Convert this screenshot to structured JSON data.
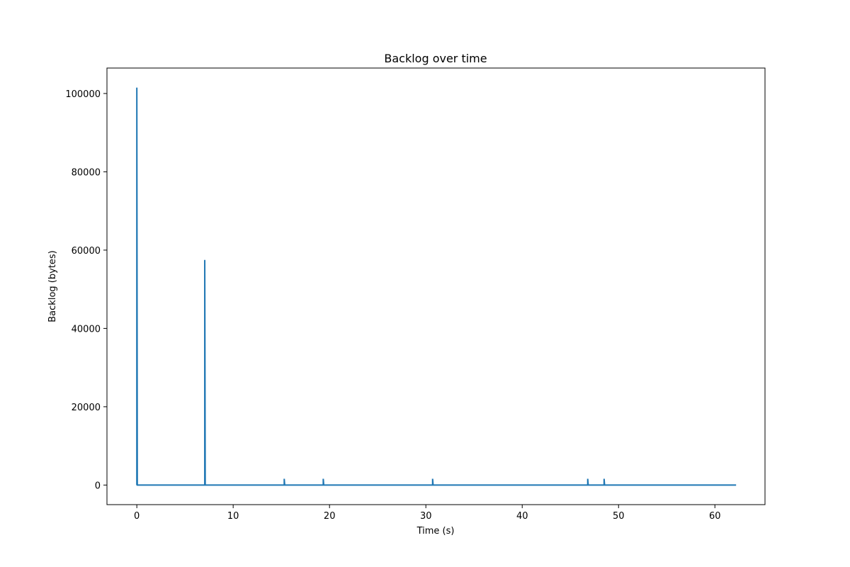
{
  "chart_data": {
    "type": "line",
    "title": "Backlog over time",
    "xlabel": "Time (s)",
    "ylabel": "Backlog (bytes)",
    "xlim": [
      -3.1,
      65.2
    ],
    "ylim": [
      -5000,
      106500
    ],
    "xticks": [
      0,
      10,
      20,
      30,
      40,
      50,
      60
    ],
    "yticks": [
      0,
      20000,
      40000,
      60000,
      80000,
      100000
    ],
    "grid": false,
    "legend": "none",
    "series": [
      {
        "color": "#1f77b4",
        "x": [
          0.0,
          0.0,
          0.05,
          7.05,
          7.05,
          7.1,
          15.3,
          15.3,
          15.35,
          19.35,
          19.35,
          19.4,
          30.7,
          30.7,
          30.75,
          46.8,
          46.8,
          46.85,
          48.5,
          48.5,
          48.55,
          62.2
        ],
        "y": [
          0,
          101500,
          0,
          0,
          57500,
          0,
          0,
          1600,
          0,
          0,
          1600,
          0,
          0,
          1600,
          0,
          0,
          1600,
          0,
          0,
          1600,
          0,
          0
        ]
      }
    ]
  }
}
